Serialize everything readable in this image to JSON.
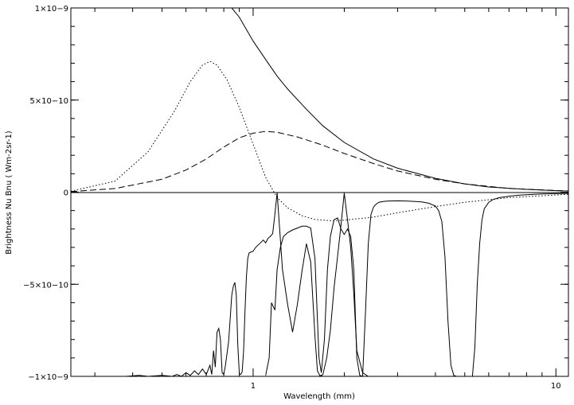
{
  "chart_data": {
    "type": "line",
    "xlabel": "Wavelength (mm)",
    "ylabel": "Brightness Nu Bnu ( Wm-2sr-1)",
    "x_scale": "log",
    "xlim": [
      0.25,
      11
    ],
    "ylim": [
      -1e-09,
      1e-09
    ],
    "grid": false,
    "legend": "none",
    "x_ticks": [
      {
        "value": 1,
        "label": "1"
      },
      {
        "value": 10,
        "label": "10"
      }
    ],
    "y_ticks": [
      {
        "value": 1e-09,
        "label": "1×10−9"
      },
      {
        "value": 5e-10,
        "label": "5×10−10"
      },
      {
        "value": 0,
        "label": "0"
      },
      {
        "value": -5e-10,
        "label": "−5×10−10"
      },
      {
        "value": -1e-09,
        "label": "−1×10−9"
      }
    ],
    "zero_line": true,
    "series": [
      {
        "style": "solid",
        "x": [
          0.85,
          0.9,
          1.0,
          1.1,
          1.2,
          1.3,
          1.5,
          1.7,
          2.0,
          2.5,
          3.0,
          4.0,
          5.0,
          6.0,
          8.0,
          10.0,
          11.0
        ],
        "y": [
          1e-09,
          9.5e-10,
          8.2e-10,
          7.2e-10,
          6.3e-10,
          5.6e-10,
          4.5e-10,
          3.6e-10,
          2.7e-10,
          1.8e-10,
          1.3e-10,
          7.5e-11,
          4.5e-11,
          2.8e-11,
          1.5e-11,
          8e-12,
          6e-12
        ]
      },
      {
        "style": "dashed",
        "x": [
          0.25,
          0.35,
          0.5,
          0.6,
          0.7,
          0.8,
          0.9,
          1.0,
          1.1,
          1.2,
          1.4,
          1.7,
          2.0,
          2.5,
          3.0,
          4.0,
          5.0,
          7.0,
          10.0,
          11.0
        ],
        "y": [
          3e-12,
          2e-11,
          7e-11,
          1.2e-10,
          1.8e-10,
          2.45e-10,
          2.95e-10,
          3.2e-10,
          3.3e-10,
          3.25e-10,
          3e-10,
          2.55e-10,
          2.1e-10,
          1.55e-10,
          1.15e-10,
          7e-11,
          4.5e-11,
          2e-11,
          9e-12,
          7e-12
        ]
      },
      {
        "style": "dotted",
        "x": [
          0.25,
          0.35,
          0.45,
          0.55,
          0.62,
          0.68,
          0.72,
          0.76,
          0.82,
          0.9,
          1.0,
          1.1,
          1.2,
          1.3,
          1.45,
          1.6,
          1.8,
          2.0,
          2.5,
          3.0,
          4.0,
          5.0,
          7.0,
          10.0,
          11.0
        ],
        "y": [
          5e-12,
          6e-11,
          2.2e-10,
          4.4e-10,
          6e-10,
          6.9e-10,
          7.1e-10,
          6.9e-10,
          6.1e-10,
          4.6e-10,
          2.6e-10,
          8e-11,
          -3e-11,
          -8.5e-11,
          -1.28e-10,
          -1.48e-10,
          -1.55e-10,
          -1.52e-10,
          -1.35e-10,
          -1.12e-10,
          -7.8e-11,
          -5.5e-11,
          -3e-11,
          -1.5e-11,
          -1.2e-11
        ]
      },
      {
        "style": "solid",
        "x": [
          0.25,
          0.38,
          0.42,
          0.45,
          0.5,
          0.54,
          0.56,
          0.58,
          0.6,
          0.62,
          0.64,
          0.66,
          0.68,
          0.7,
          0.72,
          0.73,
          0.74,
          0.75,
          0.76,
          0.77,
          0.78,
          0.79,
          0.8,
          0.81,
          0.83,
          0.85,
          0.86,
          0.87,
          0.88,
          0.89,
          0.9,
          0.91,
          0.92,
          0.93,
          0.94,
          0.95,
          0.96,
          0.97,
          1.0,
          1.02,
          1.05,
          1.08,
          1.1,
          1.12,
          1.14,
          1.16,
          1.18,
          1.2,
          1.25,
          1.3,
          1.35,
          1.4,
          1.45,
          1.5,
          1.55,
          1.6,
          1.63,
          1.66,
          1.7
        ],
        "y": [
          -1e-09,
          -1e-09,
          -9.95e-10,
          -1e-09,
          -9.95e-10,
          -1e-09,
          -9.9e-10,
          -1e-09,
          -9.8e-10,
          -9.95e-10,
          -9.7e-10,
          -9.9e-10,
          -9.6e-10,
          -9.9e-10,
          -9.4e-10,
          -9.9e-10,
          -8.6e-10,
          -9.5e-10,
          -7.6e-10,
          -7.4e-10,
          -8e-10,
          -9.8e-10,
          -9.9e-10,
          -9.4e-10,
          -8.1e-10,
          -5.6e-10,
          -5.1e-10,
          -4.9e-10,
          -5.6e-10,
          -8.3e-10,
          -9.85e-10,
          -9.9e-10,
          -9.75e-10,
          -8.6e-10,
          -6.5e-10,
          -4.6e-10,
          -3.6e-10,
          -3.3e-10,
          -3.2e-10,
          -3e-10,
          -2.8e-10,
          -2.6e-10,
          -2.75e-10,
          -2.5e-10,
          -2.4e-10,
          -2.25e-10,
          -1.2e-10,
          -3e-12,
          -4.2e-10,
          -6.1e-10,
          -7.6e-10,
          -6.1e-10,
          -4.3e-10,
          -2.8e-10,
          -3.8e-10,
          -7.8e-10,
          -9.7e-10,
          -9.95e-10,
          -1e-09
        ]
      },
      {
        "style": "solid",
        "x": [
          1.1,
          1.13,
          1.15,
          1.18,
          1.2,
          1.23,
          1.26,
          1.3,
          1.35,
          1.4,
          1.45,
          1.5,
          1.55,
          1.6,
          1.65,
          1.68,
          1.72,
          1.76,
          1.8,
          1.85,
          1.9,
          1.95,
          2.0,
          2.05,
          2.1,
          2.15,
          2.2,
          2.25,
          2.3
        ],
        "y": [
          -9.95e-10,
          -9e-10,
          -6e-10,
          -6.4e-10,
          -4.2e-10,
          -3e-10,
          -2.4e-10,
          -2.2e-10,
          -2.05e-10,
          -1.95e-10,
          -1.85e-10,
          -1.85e-10,
          -1.95e-10,
          -3.6e-10,
          -9e-10,
          -9.8e-10,
          -8e-10,
          -4.2e-10,
          -2.4e-10,
          -1.5e-10,
          -1.4e-10,
          -2e-10,
          -2.3e-10,
          -2e-10,
          -2.4e-10,
          -4.2e-10,
          -9e-10,
          -9.95e-10,
          -1e-09
        ]
      },
      {
        "style": "solid",
        "x": [
          1.65,
          1.7,
          1.75,
          1.8,
          1.85,
          1.9,
          1.95,
          2.0,
          2.05,
          2.1,
          2.15,
          2.2,
          2.3,
          2.4,
          2.5,
          2.6
        ],
        "y": [
          -1e-09,
          -9.9e-10,
          -9e-10,
          -7.5e-10,
          -5.2e-10,
          -3.5e-10,
          -1.8e-10,
          -5e-12,
          -1.5e-10,
          -3e-10,
          -5.5e-10,
          -8.6e-10,
          -9.8e-10,
          -1e-09,
          -1e-09,
          -1e-09
        ]
      },
      {
        "style": "solid",
        "x": [
          2.3,
          2.35,
          2.4,
          2.45,
          2.5,
          2.55,
          2.6,
          2.7,
          2.8,
          3.0,
          3.2,
          3.4,
          3.6,
          3.8,
          4.0,
          4.1,
          4.2,
          4.3,
          4.4,
          4.5,
          4.6,
          4.7
        ],
        "y": [
          -1e-09,
          -6.5e-10,
          -2.8e-10,
          -1.2e-10,
          -8e-11,
          -6.5e-11,
          -5.5e-11,
          -5e-11,
          -4.8e-11,
          -4.7e-11,
          -4.8e-11,
          -5e-11,
          -5.3e-11,
          -6e-11,
          -7.5e-11,
          -1e-10,
          -1.6e-10,
          -3.5e-10,
          -7e-10,
          -9.4e-10,
          -9.95e-10,
          -1e-09
        ]
      },
      {
        "style": "solid",
        "x": [
          5.3,
          5.4,
          5.5,
          5.6,
          5.7,
          5.8,
          6.0,
          6.2,
          6.5,
          7.0,
          7.5,
          8.0,
          9.0,
          10.0,
          11.0
        ],
        "y": [
          -1e-09,
          -8.4e-10,
          -5e-10,
          -2.8e-10,
          -1.5e-10,
          -9e-11,
          -5.5e-11,
          -4e-11,
          -3e-11,
          -2.2e-11,
          -1.7e-11,
          -1.4e-11,
          -1e-11,
          -8e-12,
          -7e-12
        ]
      }
    ]
  }
}
